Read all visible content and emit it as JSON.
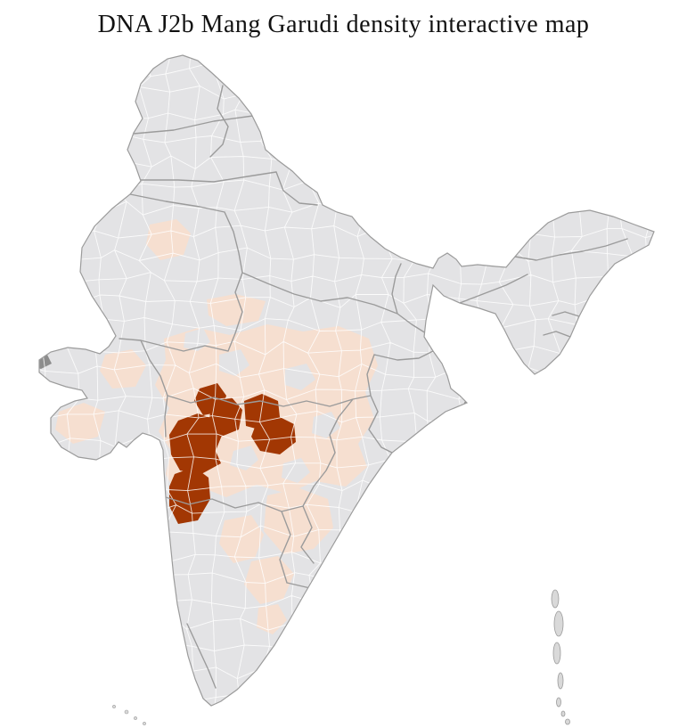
{
  "title": "DNA J2b Mang Garudi density interactive map",
  "map": {
    "region": "India",
    "unit": "districts",
    "colors": {
      "background": "#ffffff",
      "district_default": "#e3e3e5",
      "district_boundary": "#ffffff",
      "state_boundary": "#9b9b9b",
      "outline": "#9b9b9b",
      "density_low": "#f6dfd0",
      "density_high": "#a23703",
      "dark_gray_district": "#8c8c8c",
      "island_fill": "#d9d9d9"
    }
  }
}
